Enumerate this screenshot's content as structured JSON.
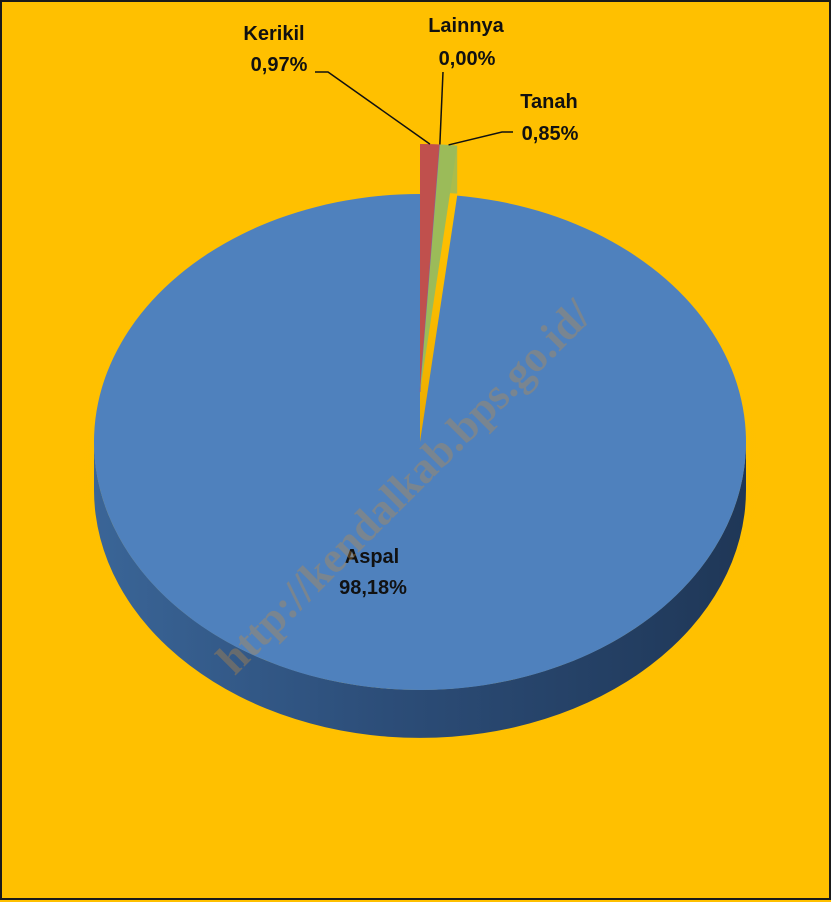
{
  "chart_data": {
    "type": "pie",
    "title": "",
    "slices": [
      {
        "label": "Aspal",
        "value": 98.18,
        "display": "98,18%",
        "color": "#4f81bd"
      },
      {
        "label": "Kerikil",
        "value": 0.97,
        "display": "0,97%",
        "color": "#c0504d"
      },
      {
        "label": "Lainnya",
        "value": 0.0,
        "display": "0,00%",
        "color": "#8064a2"
      },
      {
        "label": "Tanah",
        "value": 0.85,
        "display": "0,85%",
        "color": "#9bbb59"
      }
    ],
    "legend": "none",
    "style": "3d-exploded",
    "background": "#ffc000"
  },
  "watermark": "http://kendalkab.bps.go.id/"
}
